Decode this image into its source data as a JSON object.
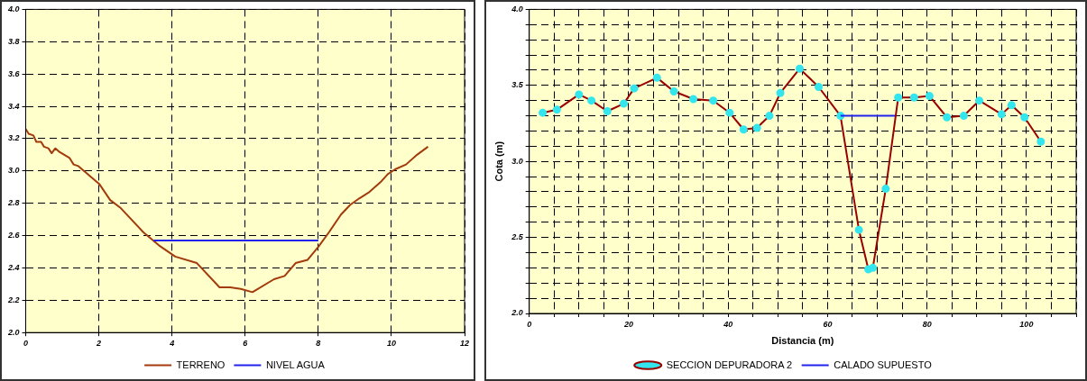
{
  "chart_data": [
    {
      "type": "line",
      "xlim": [
        0,
        12
      ],
      "xticks": [
        0,
        2,
        4,
        6,
        8,
        10,
        12
      ],
      "ylim": [
        2.0,
        4.0
      ],
      "yticks": [
        {
          "value": 2.0,
          "label": "2.0"
        },
        2.2,
        2.4,
        2.6,
        2.8,
        {
          "value": 3.0,
          "label": "3.0"
        },
        3.2,
        3.4,
        3.6,
        3.8,
        {
          "value": 4.0,
          "label": "4.0"
        }
      ],
      "grid": true,
      "legend": "bottom",
      "marker": "none",
      "line_style": "solid",
      "series": [
        {
          "name": "TERRENO",
          "color": "#a33a0c",
          "x": [
            0,
            0.08,
            0.21,
            0.29,
            0.42,
            0.5,
            0.62,
            0.71,
            0.81,
            0.91,
            1.2,
            1.31,
            1.44,
            2.01,
            2.31,
            2.6,
            3.22,
            3.64,
            4.09,
            4.68,
            5.3,
            5.59,
            5.88,
            6.2,
            6.79,
            7.08,
            7.38,
            7.71,
            8.0,
            8.29,
            8.62,
            8.87,
            9.12,
            9.4,
            9.7,
            9.9,
            10.1,
            10.4,
            10.7,
            11.0
          ],
          "values": [
            3.26,
            3.23,
            3.22,
            3.18,
            3.18,
            3.15,
            3.14,
            3.11,
            3.14,
            3.12,
            3.08,
            3.04,
            3.03,
            2.92,
            2.82,
            2.77,
            2.62,
            2.54,
            2.47,
            2.43,
            2.28,
            2.28,
            2.27,
            2.25,
            2.33,
            2.35,
            2.43,
            2.45,
            2.53,
            2.62,
            2.73,
            2.79,
            2.83,
            2.87,
            2.93,
            2.98,
            3.01,
            3.04,
            3.1,
            3.15
          ]
        },
        {
          "name": "NIVEL AGUA",
          "color": "#2222ee",
          "x": [
            3.5,
            8.0
          ],
          "values": [
            2.57,
            2.57
          ]
        }
      ]
    },
    {
      "type": "line",
      "xlabel": "Distancia (m)",
      "ylabel": "Cota (m)",
      "xlim": [
        0,
        110
      ],
      "xticks": [
        0,
        {
          "value": 5,
          "label": null
        },
        {
          "value": 10,
          "label": null
        },
        {
          "value": 15,
          "label": null
        },
        20,
        {
          "value": 25,
          "label": null
        },
        {
          "value": 30,
          "label": null
        },
        {
          "value": 35,
          "label": null
        },
        40,
        {
          "value": 45,
          "label": null
        },
        {
          "value": 50,
          "label": null
        },
        {
          "value": 55,
          "label": null
        },
        60,
        {
          "value": 65,
          "label": null
        },
        {
          "value": 70,
          "label": null
        },
        {
          "value": 75,
          "label": null
        },
        80,
        {
          "value": 85,
          "label": null
        },
        {
          "value": 90,
          "label": null
        },
        {
          "value": 95,
          "label": null
        },
        100,
        {
          "value": 105,
          "label": null
        },
        {
          "value": 110,
          "label": null
        }
      ],
      "ylim": [
        2.0,
        4.0
      ],
      "yticks": [
        {
          "value": 2.0,
          "label": "2.0"
        },
        {
          "value": 2.1,
          "label": null
        },
        {
          "value": 2.2,
          "label": null
        },
        {
          "value": 2.3,
          "label": null
        },
        {
          "value": 2.4,
          "label": null
        },
        2.5,
        {
          "value": 2.6,
          "label": null
        },
        {
          "value": 2.7,
          "label": null
        },
        {
          "value": 2.8,
          "label": null
        },
        {
          "value": 2.9,
          "label": null
        },
        {
          "value": 3.0,
          "label": "3.0"
        },
        {
          "value": 3.1,
          "label": null
        },
        {
          "value": 3.2,
          "label": null
        },
        {
          "value": 3.3,
          "label": null
        },
        {
          "value": 3.4,
          "label": null
        },
        3.5,
        {
          "value": 3.6,
          "label": null
        },
        {
          "value": 3.7,
          "label": null
        },
        {
          "value": 3.8,
          "label": null
        },
        {
          "value": 3.9,
          "label": null
        },
        {
          "value": 4.0,
          "label": "4.0"
        }
      ],
      "grid": true,
      "legend": "bottom",
      "line_style": "solid",
      "series": [
        {
          "name": "SECCION DEPURADORA 2",
          "color": "#990000",
          "marker": "circle",
          "x": [
            2.7,
            5.55,
            10.0,
            12.5,
            15.7,
            19.0,
            21.1,
            25.7,
            29.1,
            33.0,
            37.0,
            40.3,
            43.1,
            45.8,
            48.3,
            50.5,
            54.4,
            58.2,
            62.6,
            66.3,
            68.2,
            69.1,
            71.7,
            74.2,
            77.4,
            80.5,
            84.0,
            87.4,
            90.5,
            95.0,
            97.0,
            99.6,
            102.9
          ],
          "values": [
            3.32,
            3.34,
            3.44,
            3.4,
            3.33,
            3.38,
            3.48,
            3.55,
            3.46,
            3.41,
            3.4,
            3.32,
            3.21,
            3.22,
            3.3,
            3.45,
            3.61,
            3.49,
            3.3,
            2.55,
            2.29,
            2.3,
            2.82,
            3.42,
            3.42,
            3.43,
            3.29,
            3.3,
            3.4,
            3.31,
            3.37,
            3.29,
            3.13
          ]
        },
        {
          "name": "CALADO SUPUESTO",
          "color": "#2222ee",
          "marker": "none",
          "x": [
            62.6,
            73.5
          ],
          "values": [
            3.3,
            3.3
          ]
        }
      ]
    }
  ]
}
